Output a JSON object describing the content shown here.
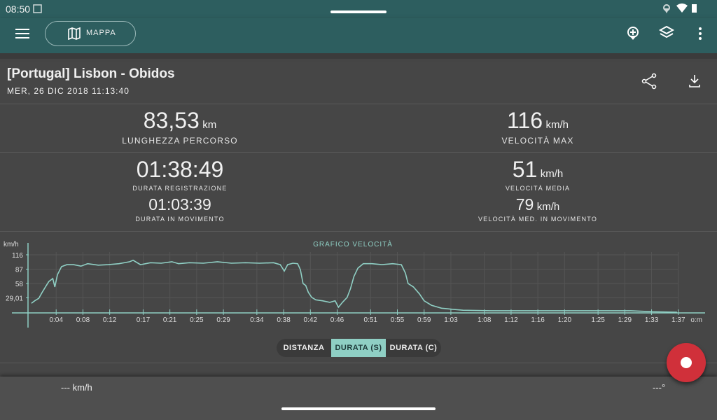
{
  "status_bar": {
    "time": "08:50"
  },
  "toolbar": {
    "map_button": "MAPPA"
  },
  "track": {
    "title": "[Portugal] Lisbon - Obidos",
    "date": "MER, 26 DIC 2018 11:13:40"
  },
  "stats": [
    {
      "value": "83,53",
      "unit": "km",
      "label": "LUNGHEZZA PERCORSO"
    },
    {
      "value": "116",
      "unit": "km/h",
      "label": "VELOCITÀ MAX"
    },
    {
      "value": "01:38:49",
      "label": "DURATA REGISTRAZIONE"
    },
    {
      "value": "51",
      "unit": "km/h",
      "label": "VELOCITÀ MEDIA"
    },
    {
      "value": "01:03:39",
      "label": "DURATA IN MOVIMENTO"
    },
    {
      "value": "79",
      "unit": "km/h",
      "label": "VELOCITÀ MED. IN MOVIMENTO"
    }
  ],
  "chart_data": {
    "type": "line",
    "title": "GRAFICO VELOCITÀ",
    "y_label": "km/h",
    "x_label": "o:m",
    "x": [
      0.3,
      0.8,
      1.4,
      1.9,
      2.4,
      2.9,
      3.5,
      3.8,
      4.2,
      4.8,
      5.6,
      6.6,
      7.7,
      8.7,
      10.3,
      11.8,
      13.4,
      15.0,
      15.5,
      16.6,
      18.1,
      19.7,
      21.3,
      22.3,
      23.9,
      26.0,
      28.1,
      30.2,
      32.3,
      34.4,
      36.5,
      37.5,
      38.1,
      38.6,
      39.4,
      40.1,
      40.5,
      40.9,
      41.3,
      41.7,
      42.2,
      42.8,
      43.8,
      44.9,
      45.7,
      46.2,
      46.8,
      47.5,
      48.0,
      48.5,
      49.1,
      49.9,
      51.2,
      52.7,
      54.3,
      55.6,
      56.2,
      56.6,
      57.4,
      58.3,
      59.0,
      60.1,
      61.6,
      63.2,
      64.8,
      69.0,
      79.5,
      89.9,
      93.1,
      96.8
    ],
    "series": [
      {
        "name": "km/h",
        "color": "#8fcfc4",
        "values": [
          18,
          23,
          28,
          40,
          51,
          62,
          68,
          51,
          76,
          92,
          96,
          96,
          93,
          98,
          95,
          96,
          98,
          102,
          105,
          96,
          100,
          99,
          102,
          98,
          100,
          99,
          102,
          99,
          100,
          99,
          100,
          96,
          83,
          96,
          99,
          98,
          86,
          58,
          54,
          40,
          30,
          25,
          23,
          20,
          23,
          10,
          20,
          30,
          48,
          72,
          89,
          98,
          98,
          96,
          98,
          96,
          79,
          58,
          51,
          37,
          23,
          14,
          8,
          6,
          4,
          3,
          3,
          3,
          1,
          0
        ]
      }
    ],
    "xlim": [
      0,
      101
    ],
    "ylim": [
      0,
      140
    ],
    "yticks": [
      {
        "value": 29.01,
        "label": "29,01"
      },
      58,
      87,
      116
    ],
    "xticks": [
      {
        "value": 4,
        "label": "0:04"
      },
      {
        "value": 8,
        "label": "0:08"
      },
      {
        "value": 12,
        "label": "0:12"
      },
      {
        "value": 17,
        "label": "0:17"
      },
      {
        "value": 21,
        "label": "0:21"
      },
      {
        "value": 25,
        "label": "0:25"
      },
      {
        "value": 29,
        "label": "0:29"
      },
      {
        "value": 34,
        "label": "0:34"
      },
      {
        "value": 38,
        "label": "0:38"
      },
      {
        "value": 42,
        "label": "0:42"
      },
      {
        "value": 46,
        "label": "0:46"
      },
      {
        "value": 51,
        "label": "0:51"
      },
      {
        "value": 55,
        "label": "0:55"
      },
      {
        "value": 59,
        "label": "0:59"
      },
      {
        "value": 63,
        "label": "1:03"
      },
      {
        "value": 68,
        "label": "1:08"
      },
      {
        "value": 72,
        "label": "1:12"
      },
      {
        "value": 76,
        "label": "1:16"
      },
      {
        "value": 80,
        "label": "1:20"
      },
      {
        "value": 85,
        "label": "1:25"
      },
      {
        "value": 89,
        "label": "1:29"
      },
      {
        "value": 93,
        "label": "1:33"
      },
      {
        "value": 97,
        "label": "1:37"
      }
    ],
    "grid": true
  },
  "mode_buttons": [
    "DISTANZA",
    "DURATA (S)",
    "DURATA (C)"
  ],
  "bottom_bar": {
    "speed": "--- km/h",
    "heading": "---°"
  }
}
